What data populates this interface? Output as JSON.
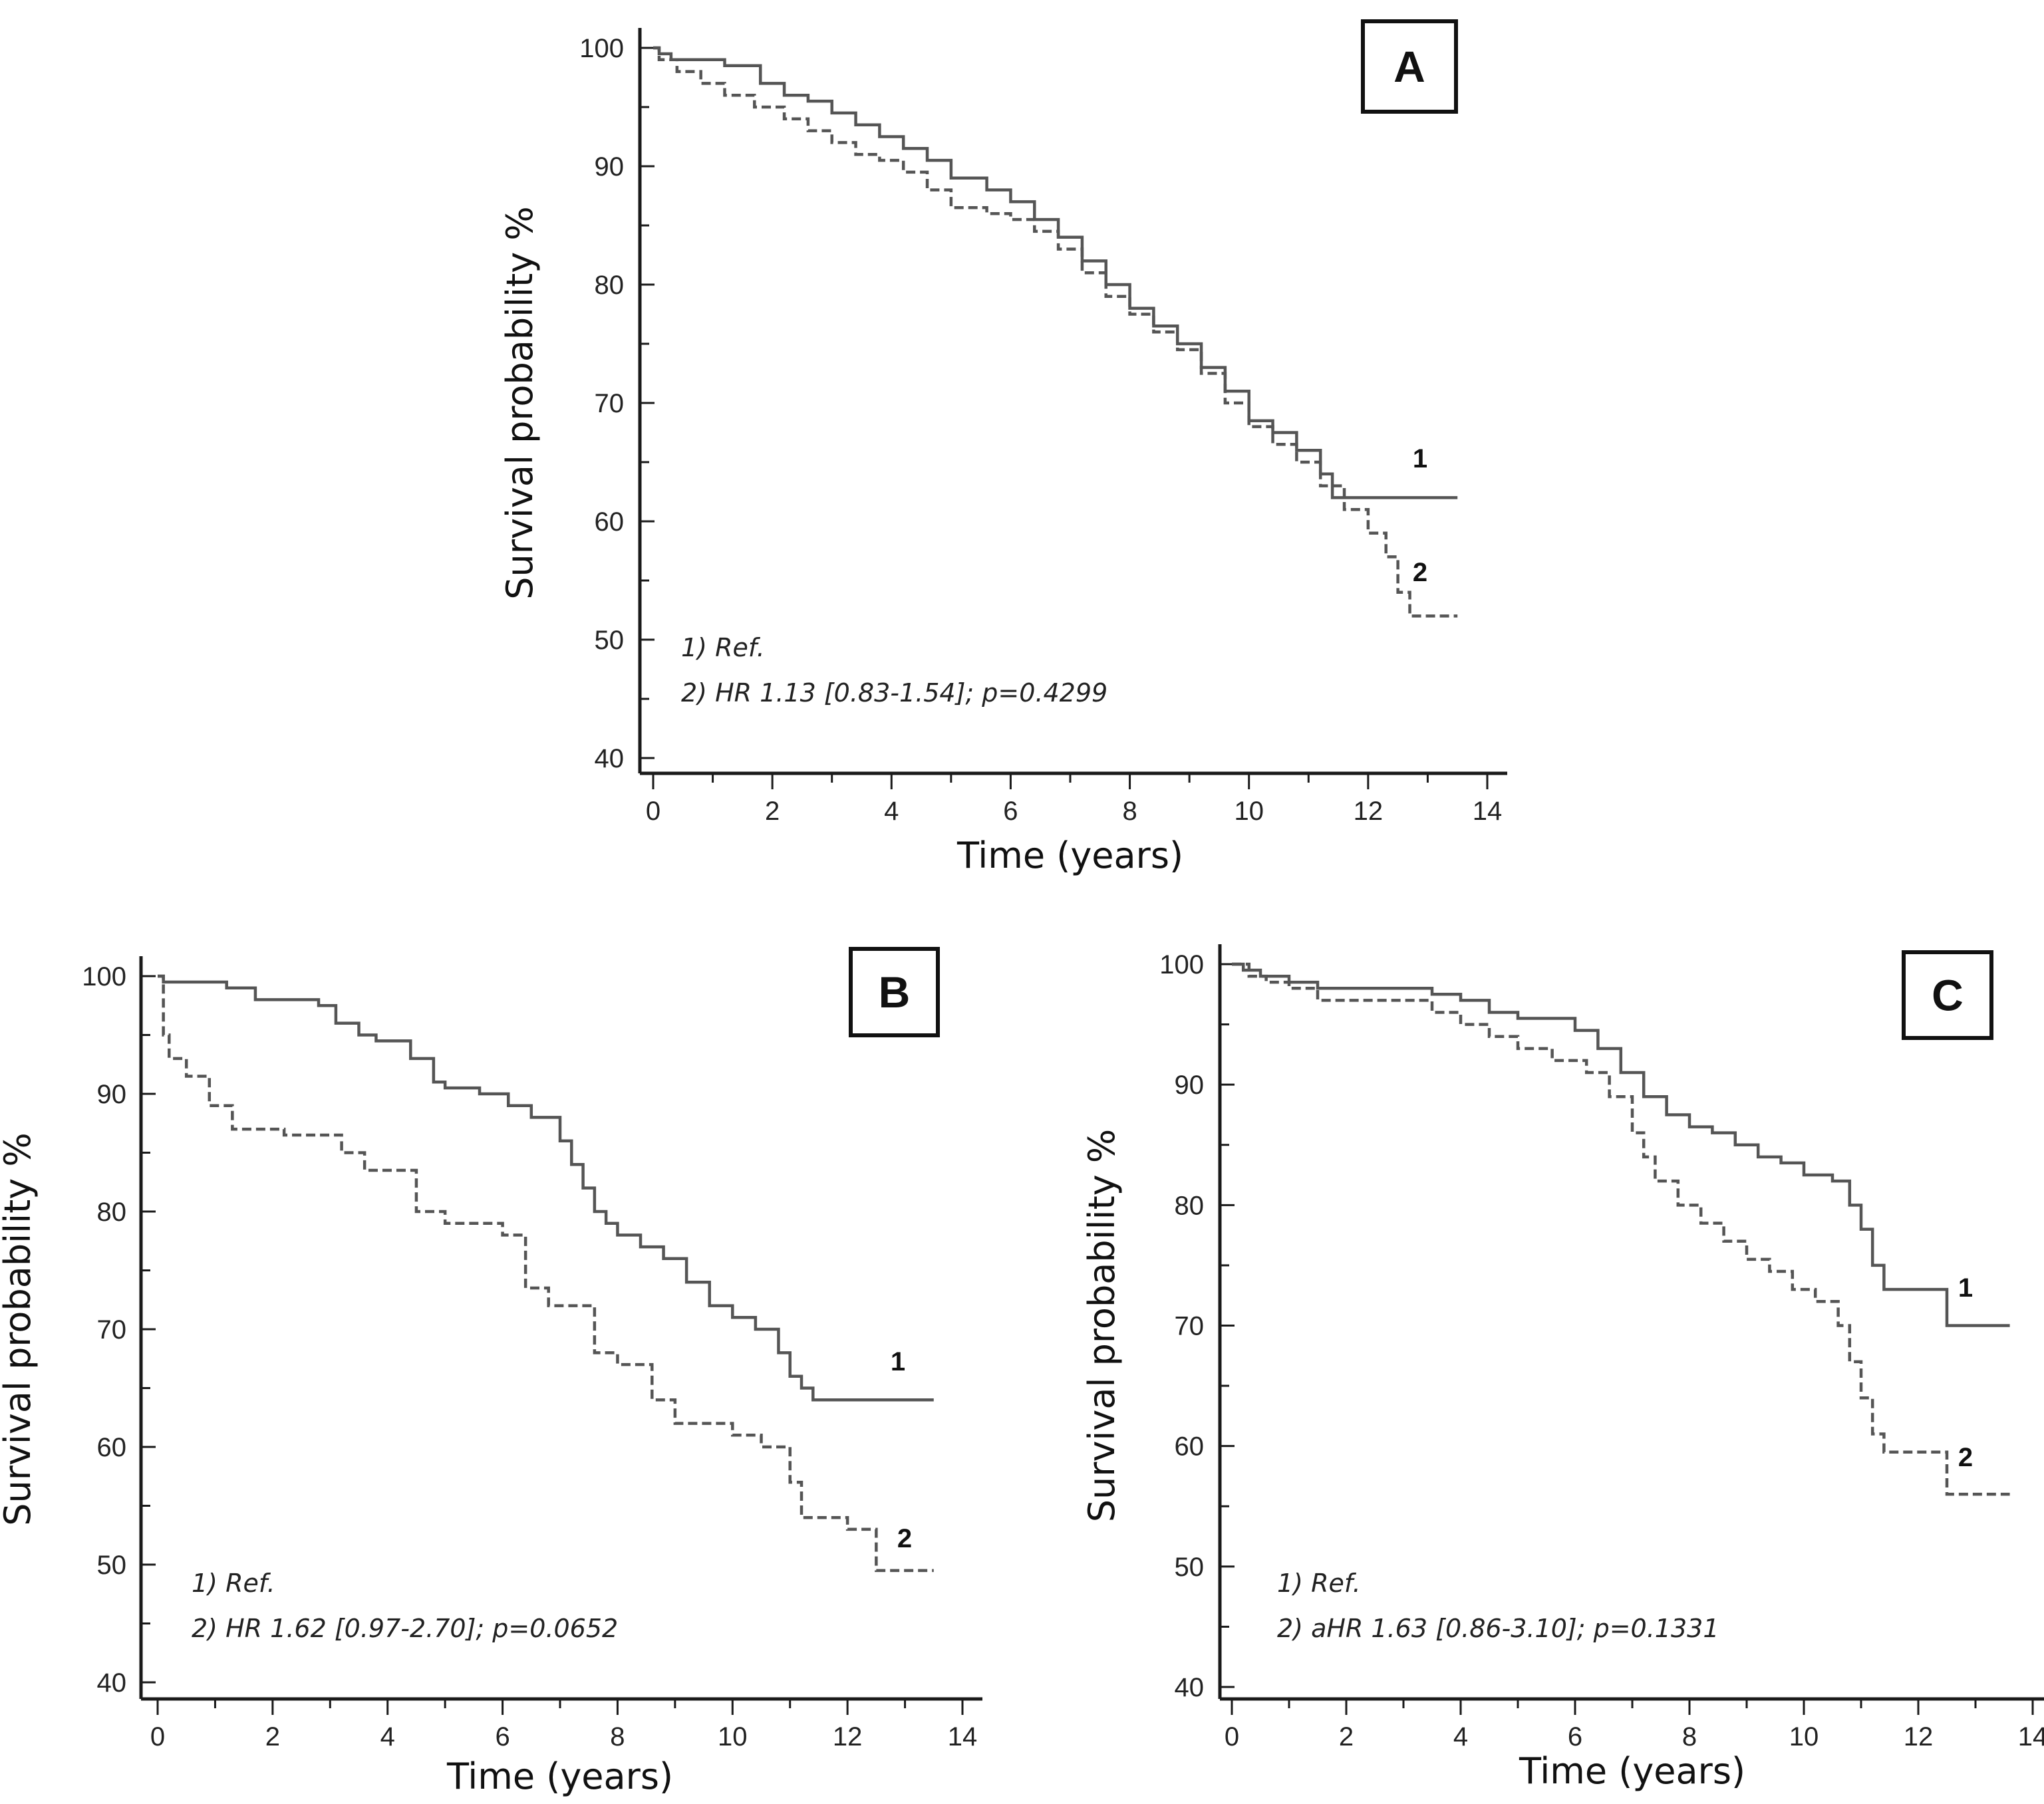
{
  "chart_data": [
    {
      "panel": "A",
      "type": "line",
      "title": "A",
      "xlabel": "Time (years)",
      "ylabel": "Survival probability %",
      "xlim": [
        0,
        14
      ],
      "ylim": [
        40,
        100
      ],
      "x_ticks": [
        0,
        2,
        4,
        6,
        8,
        10,
        12,
        14
      ],
      "y_ticks": [
        40,
        50,
        60,
        70,
        80,
        90,
        100
      ],
      "grid": false,
      "annotations": [
        "1) Ref.",
        "2) HR 1.13 [0.83-1.54]; p=0.4299"
      ],
      "series": [
        {
          "name": "1",
          "style": "solid",
          "x": [
            0,
            0.1,
            0.3,
            0.6,
            1.2,
            1.8,
            2.2,
            2.6,
            3.0,
            3.4,
            3.8,
            4.2,
            4.6,
            5.0,
            5.6,
            6.0,
            6.4,
            6.8,
            7.2,
            7.6,
            8.0,
            8.4,
            8.8,
            9.2,
            9.6,
            10.0,
            10.4,
            10.8,
            11.2,
            11.4,
            13.5
          ],
          "y": [
            100,
            99.5,
            99,
            99,
            98.5,
            97,
            96,
            95.5,
            94.5,
            93.5,
            92.5,
            91.5,
            90.5,
            89,
            88,
            87,
            85.5,
            84,
            82,
            80,
            78,
            76.5,
            75,
            73,
            71,
            68.5,
            67.5,
            66,
            64,
            62,
            62
          ]
        },
        {
          "name": "2",
          "style": "dashed",
          "x": [
            0,
            0.1,
            0.4,
            0.8,
            1.2,
            1.7,
            2.2,
            2.6,
            3.0,
            3.4,
            3.8,
            4.2,
            4.6,
            5.0,
            5.6,
            6.0,
            6.4,
            6.8,
            7.2,
            7.6,
            8.0,
            8.4,
            8.8,
            9.2,
            9.6,
            10.0,
            10.4,
            10.8,
            11.2,
            11.6,
            12.0,
            12.3,
            12.5,
            12.7,
            13.5
          ],
          "y": [
            100,
            99,
            98,
            97,
            96,
            95,
            94,
            93,
            92,
            91,
            90.5,
            89.5,
            88,
            86.5,
            86,
            85.5,
            84.5,
            83,
            81,
            79,
            77.5,
            76,
            74.5,
            72.5,
            70,
            68,
            66.5,
            65,
            63,
            61,
            59,
            57,
            54,
            52,
            52
          ]
        }
      ]
    },
    {
      "panel": "B",
      "type": "line",
      "title": "B",
      "xlabel": "Time (years)",
      "ylabel": "Survival probability %",
      "xlim": [
        0,
        14
      ],
      "ylim": [
        40,
        100
      ],
      "x_ticks": [
        0,
        2,
        4,
        6,
        8,
        10,
        12,
        14
      ],
      "y_ticks": [
        40,
        50,
        60,
        70,
        80,
        90,
        100
      ],
      "grid": false,
      "annotations": [
        "1) Ref.",
        "2) HR 1.62 [0.97-2.70]; p=0.0652"
      ],
      "series": [
        {
          "name": "1",
          "style": "solid",
          "x": [
            0,
            0.1,
            1.2,
            1.7,
            2.8,
            3.1,
            3.5,
            3.8,
            4.4,
            4.8,
            5.0,
            5.6,
            6.1,
            6.5,
            7.0,
            7.2,
            7.4,
            7.6,
            7.8,
            8.0,
            8.4,
            8.8,
            9.2,
            9.6,
            10.0,
            10.4,
            10.8,
            11.0,
            11.2,
            11.4,
            13.5
          ],
          "y": [
            100,
            99.5,
            99,
            98,
            97.5,
            96,
            95,
            94.5,
            93,
            91,
            90.5,
            90,
            89,
            88,
            86,
            84,
            82,
            80,
            79,
            78,
            77,
            76,
            74,
            72,
            71,
            70,
            68,
            66,
            65,
            64,
            64
          ]
        },
        {
          "name": "2",
          "style": "dashed",
          "x": [
            0,
            0.1,
            0.2,
            0.5,
            0.9,
            1.3,
            2.2,
            3.2,
            3.6,
            4.5,
            5.0,
            6.0,
            6.4,
            6.8,
            7.6,
            8.0,
            8.6,
            9.0,
            10.0,
            10.5,
            11.0,
            11.2,
            12.0,
            12.5,
            13.5
          ],
          "y": [
            100,
            95,
            93,
            91.5,
            89,
            87,
            86.5,
            85,
            83.5,
            80,
            79,
            78,
            73.5,
            72,
            68,
            67,
            64,
            62,
            61,
            60,
            57,
            54,
            53,
            49.5,
            49.5
          ]
        }
      ]
    },
    {
      "panel": "C",
      "type": "line",
      "title": "C",
      "xlabel": "Time (years)",
      "ylabel": "Survival probability %",
      "xlim": [
        0,
        14
      ],
      "ylim": [
        40,
        100
      ],
      "x_ticks": [
        0,
        2,
        4,
        6,
        8,
        10,
        12,
        14
      ],
      "y_ticks": [
        40,
        50,
        60,
        70,
        80,
        90,
        100
      ],
      "grid": false,
      "annotations": [
        "1) Ref.",
        "2) aHR 1.63 [0.86-3.10]; p=0.1331"
      ],
      "series": [
        {
          "name": "1",
          "style": "solid",
          "x": [
            0,
            0.2,
            0.5,
            1.0,
            1.5,
            3.0,
            3.5,
            4.0,
            4.5,
            5.0,
            6.0,
            6.4,
            6.8,
            7.2,
            7.6,
            8.0,
            8.4,
            8.8,
            9.2,
            9.6,
            10.0,
            10.5,
            10.8,
            11.0,
            11.2,
            11.4,
            12.5,
            13.6
          ],
          "y": [
            100,
            99.5,
            99,
            98.5,
            98,
            98,
            97.5,
            97,
            96,
            95.5,
            94.5,
            93,
            91,
            89,
            87.5,
            86.5,
            86,
            85,
            84,
            83.5,
            82.5,
            82,
            80,
            78,
            75,
            73,
            70,
            70
          ]
        },
        {
          "name": "2",
          "style": "dashed",
          "x": [
            0,
            0.3,
            0.6,
            1.0,
            1.5,
            3.0,
            3.5,
            4.0,
            4.5,
            5.0,
            5.6,
            6.2,
            6.6,
            7.0,
            7.2,
            7.4,
            7.8,
            8.2,
            8.6,
            9.0,
            9.4,
            9.8,
            10.2,
            10.6,
            10.8,
            11.0,
            11.2,
            11.4,
            12.5,
            13.6
          ],
          "y": [
            100,
            99,
            98.5,
            98,
            97,
            97,
            96,
            95,
            94,
            93,
            92,
            91,
            89,
            86,
            84,
            82,
            80,
            78.5,
            77,
            75.5,
            74.5,
            73,
            72,
            70,
            67,
            64,
            61,
            59.5,
            56,
            56
          ]
        }
      ]
    }
  ]
}
